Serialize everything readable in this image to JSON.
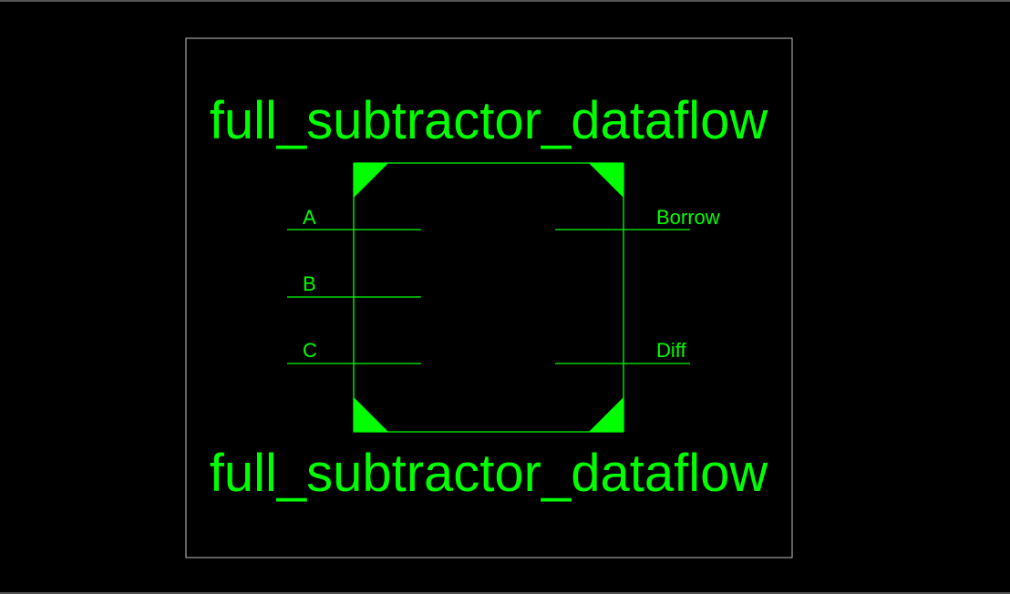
{
  "symbol": {
    "title_top": "full_subtractor_dataflow",
    "title_bottom": "full_subtractor_dataflow",
    "inputs": [
      "A",
      "B",
      "C"
    ],
    "outputs": [
      "Borrow",
      "Diff"
    ],
    "color": "#00ff00",
    "frame_color": "#bfbfbf",
    "background": "#000000"
  }
}
